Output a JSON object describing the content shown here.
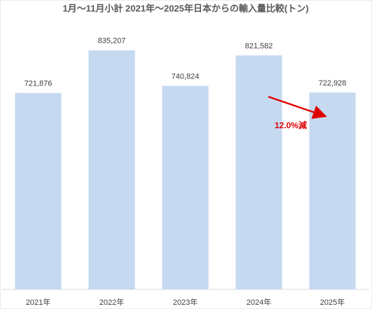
{
  "chart_data": {
    "type": "bar",
    "title": "1月～11月小計 2021年～2025年日本からの輸入量比較(トン)",
    "categories": [
      "2021年",
      "2022年",
      "2023年",
      "2024年",
      "2025年"
    ],
    "values": [
      721876,
      835207,
      740824,
      821582,
      722928
    ],
    "value_labels": [
      "721,876",
      "835,207",
      "740,824",
      "821,582",
      "722,928"
    ],
    "color": "#c5d9f1",
    "ylim": [
      200000,
      900000
    ],
    "annotation": "12.0%減"
  }
}
